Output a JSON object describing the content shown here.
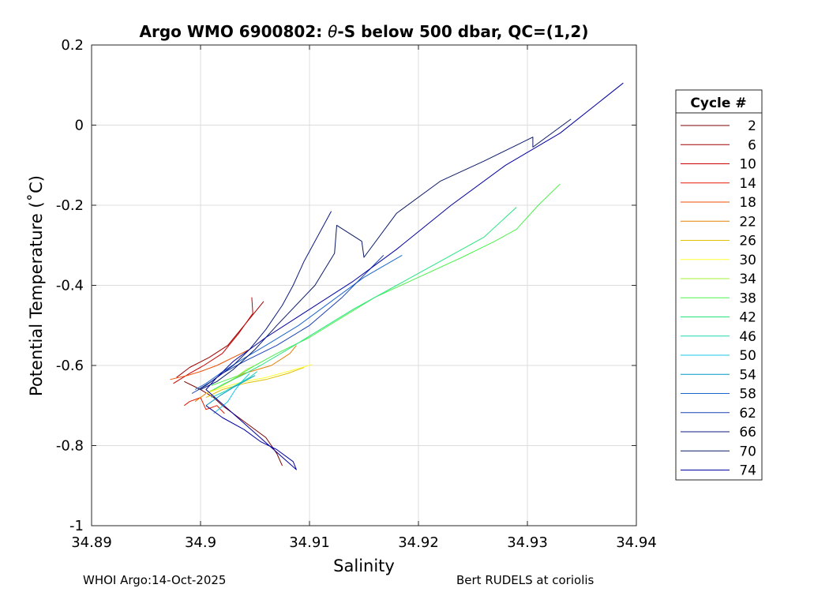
{
  "chart_data": {
    "type": "line",
    "title_prefix": "Argo WMO 6900802: ",
    "title_theta": "θ",
    "title_suffix": "-S below 500 dbar,  QC=(1,2)",
    "xlabel": "Salinity",
    "ylabel": "Potential Temperature (˚C)",
    "xlim": [
      34.89,
      34.94
    ],
    "ylim": [
      -1,
      0.2
    ],
    "grid": true,
    "x_ticks": [
      34.89,
      34.9,
      34.91,
      34.92,
      34.93,
      34.94
    ],
    "x_tick_labels": [
      "34.89",
      "34.9",
      "34.91",
      "34.92",
      "34.93",
      "34.94"
    ],
    "y_ticks": [
      0.2,
      0,
      -0.2,
      -0.4,
      -0.6,
      -0.8,
      -1
    ],
    "y_tick_labels": [
      "0.2",
      "0",
      "-0.2",
      "-0.4",
      "-0.6",
      "-0.8",
      "-1"
    ],
    "legend_title": "Cycle #",
    "legend_position": "right, outside",
    "legend": [
      {
        "label": "2",
        "color": "#7a0000"
      },
      {
        "label": "6",
        "color": "#a00000"
      },
      {
        "label": "10",
        "color": "#cc0000"
      },
      {
        "label": "14",
        "color": "#e61a00"
      },
      {
        "label": "18",
        "color": "#f24d00"
      },
      {
        "label": "22",
        "color": "#e67e00"
      },
      {
        "label": "26",
        "color": "#e0c000"
      },
      {
        "label": "30",
        "color": "#ffff33"
      },
      {
        "label": "34",
        "color": "#a6f23a"
      },
      {
        "label": "38",
        "color": "#4df24d"
      },
      {
        "label": "42",
        "color": "#26e680"
      },
      {
        "label": "46",
        "color": "#1ad9b3"
      },
      {
        "label": "50",
        "color": "#1ac8e6"
      },
      {
        "label": "54",
        "color": "#0099cc"
      },
      {
        "label": "58",
        "color": "#1a66cc"
      },
      {
        "label": "62",
        "color": "#1a40b3"
      },
      {
        "label": "66",
        "color": "#0d1a80"
      },
      {
        "label": "70",
        "color": "#0a1a66"
      },
      {
        "label": "74",
        "color": "#0000a0"
      }
    ],
    "series": [
      {
        "color": "#7a0000",
        "x": [
          34.8985,
          34.9,
          34.9012,
          34.902,
          34.903,
          34.9045,
          34.906,
          34.907,
          34.9075
        ],
        "y": [
          -0.64,
          -0.66,
          -0.68,
          -0.7,
          -0.72,
          -0.75,
          -0.78,
          -0.82,
          -0.85
        ]
      },
      {
        "color": "#a00000",
        "x": [
          34.8978,
          34.899,
          34.9008,
          34.9025,
          34.904,
          34.9052,
          34.9058
        ],
        "y": [
          -0.63,
          -0.605,
          -0.58,
          -0.55,
          -0.5,
          -0.46,
          -0.44
        ]
      },
      {
        "color": "#cc0000",
        "x": [
          34.8975,
          34.899,
          34.9003,
          34.902,
          34.9035,
          34.9048,
          34.9047
        ],
        "y": [
          -0.645,
          -0.62,
          -0.6,
          -0.57,
          -0.52,
          -0.47,
          -0.43
        ]
      },
      {
        "color": "#e61a00",
        "x": [
          34.8985,
          34.899,
          34.9,
          34.9005,
          34.9015,
          34.9022
        ],
        "y": [
          -0.7,
          -0.69,
          -0.68,
          -0.71,
          -0.7,
          -0.72
        ]
      },
      {
        "color": "#f24d00",
        "x": [
          34.8972,
          34.8988,
          34.9,
          34.9015,
          34.903,
          34.9045
        ],
        "y": [
          -0.635,
          -0.625,
          -0.615,
          -0.6,
          -0.58,
          -0.56
        ]
      },
      {
        "color": "#e67e00",
        "x": [
          34.8995,
          34.9005,
          34.902,
          34.904,
          34.9065,
          34.9082,
          34.9088
        ],
        "y": [
          -0.69,
          -0.67,
          -0.65,
          -0.62,
          -0.6,
          -0.57,
          -0.55
        ]
      },
      {
        "color": "#e0c000",
        "x": [
          34.9005,
          34.902,
          34.904,
          34.906,
          34.908,
          34.9095
        ],
        "y": [
          -0.68,
          -0.66,
          -0.645,
          -0.635,
          -0.62,
          -0.605
        ]
      },
      {
        "color": "#ffff33",
        "x": [
          34.9005,
          34.902,
          34.904,
          34.906,
          34.908,
          34.9102
        ],
        "y": [
          -0.67,
          -0.655,
          -0.64,
          -0.63,
          -0.615,
          -0.598
        ]
      },
      {
        "color": "#a6f23a",
        "x": [
          34.9008,
          34.902,
          34.9032,
          34.9042,
          34.905
        ],
        "y": [
          -0.665,
          -0.65,
          -0.63,
          -0.61,
          -0.6
        ]
      },
      {
        "color": "#4df24d",
        "x": [
          34.901,
          34.902,
          34.9035,
          34.905,
          34.907,
          34.91,
          34.913,
          34.916,
          34.92,
          34.924,
          34.927,
          34.929,
          34.931,
          34.933
        ],
        "y": [
          -0.65,
          -0.64,
          -0.625,
          -0.6,
          -0.57,
          -0.53,
          -0.48,
          -0.43,
          -0.38,
          -0.33,
          -0.29,
          -0.26,
          -0.2,
          -0.147
        ]
      },
      {
        "color": "#26e680",
        "x": [
          34.9012,
          34.9022,
          34.9038,
          34.9055,
          34.908,
          34.911,
          34.914,
          34.918,
          34.922,
          34.926,
          34.929
        ],
        "y": [
          -0.66,
          -0.645,
          -0.625,
          -0.6,
          -0.56,
          -0.51,
          -0.46,
          -0.4,
          -0.34,
          -0.28,
          -0.205
        ]
      },
      {
        "color": "#1ad9b3",
        "x": [
          34.901,
          34.9022,
          34.9035,
          34.9045,
          34.9052
        ],
        "y": [
          -0.68,
          -0.665,
          -0.645,
          -0.63,
          -0.615
        ]
      },
      {
        "color": "#1ac8e6",
        "x": [
          34.9012,
          34.9025,
          34.9032,
          34.9038,
          34.9045
        ],
        "y": [
          -0.72,
          -0.69,
          -0.66,
          -0.64,
          -0.62
        ]
      },
      {
        "color": "#0099cc",
        "x": [
          34.9005,
          34.9018,
          34.903,
          34.904,
          34.905
        ],
        "y": [
          -0.7,
          -0.675,
          -0.655,
          -0.64,
          -0.625
        ]
      },
      {
        "color": "#1a66cc",
        "x": [
          34.8995,
          34.9005,
          34.9018,
          34.9035,
          34.906,
          34.909,
          34.912,
          34.915,
          34.9185
        ],
        "y": [
          -0.66,
          -0.645,
          -0.62,
          -0.59,
          -0.55,
          -0.5,
          -0.44,
          -0.38,
          -0.325
        ]
      },
      {
        "color": "#1a40b3",
        "x": [
          34.8992,
          34.9005,
          34.902,
          34.904,
          34.907,
          34.91,
          34.913,
          34.9168
        ],
        "y": [
          -0.67,
          -0.65,
          -0.62,
          -0.59,
          -0.55,
          -0.5,
          -0.43,
          -0.325
        ]
      },
      {
        "color": "#0d1a80",
        "x": [
          34.8998,
          34.901,
          34.903,
          34.9045,
          34.906,
          34.9075,
          34.9085,
          34.9095,
          34.912
        ],
        "y": [
          -0.66,
          -0.64,
          -0.6,
          -0.56,
          -0.51,
          -0.45,
          -0.4,
          -0.34,
          -0.215
        ]
      },
      {
        "color": "#0a1a66",
        "x": [
          34.9,
          34.9015,
          34.903,
          34.905,
          34.907,
          34.9105,
          34.9123,
          34.9125,
          34.9148,
          34.915,
          34.918,
          34.922,
          34.926,
          34.929,
          34.9305,
          34.9305,
          34.934
        ],
        "y": [
          -0.66,
          -0.64,
          -0.61,
          -0.56,
          -0.5,
          -0.4,
          -0.32,
          -0.25,
          -0.29,
          -0.33,
          -0.22,
          -0.14,
          -0.09,
          -0.05,
          -0.03,
          -0.055,
          0.015
        ]
      },
      {
        "color": "#0000a0",
        "x": [
          34.9005,
          34.902,
          34.904,
          34.9055,
          34.907,
          34.9085,
          34.9088,
          34.9005,
          34.9015,
          34.903,
          34.906,
          34.91,
          34.914,
          34.918,
          34.923,
          34.928,
          34.933,
          34.9388
        ],
        "y": [
          -0.7,
          -0.73,
          -0.76,
          -0.79,
          -0.81,
          -0.84,
          -0.86,
          -0.66,
          -0.63,
          -0.59,
          -0.53,
          -0.46,
          -0.39,
          -0.31,
          -0.2,
          -0.1,
          -0.02,
          0.105
        ]
      }
    ]
  },
  "footer": {
    "left": "WHOI Argo:14-Oct-2025",
    "right": "Bert RUDELS at coriolis"
  }
}
